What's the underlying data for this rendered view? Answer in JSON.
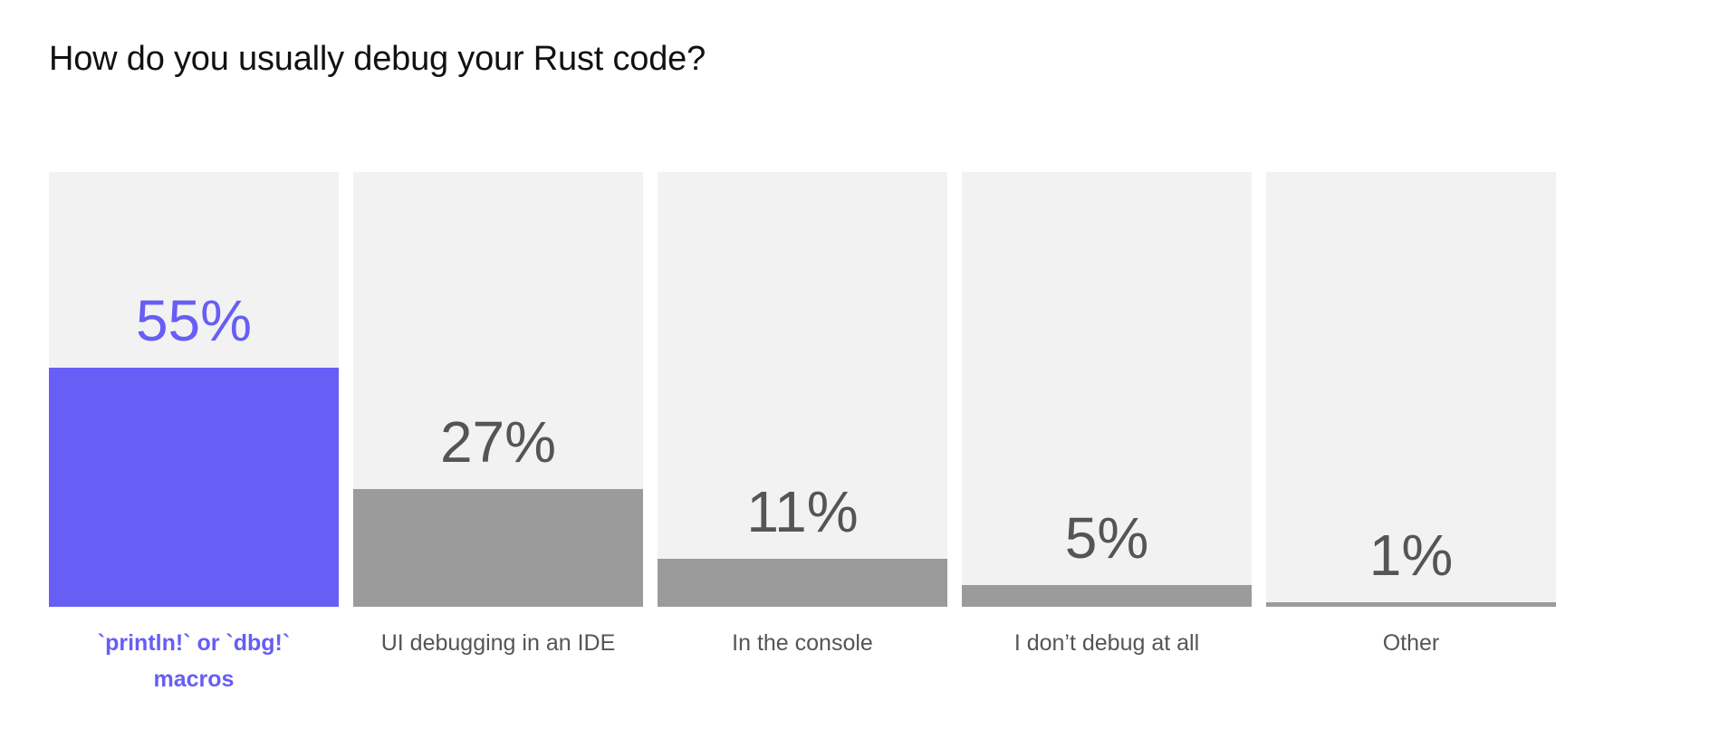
{
  "chart_data": {
    "type": "bar",
    "title": "How do you usually debug your Rust code?",
    "categories": [
      "`println!` or `dbg!` macros",
      "UI debugging in an IDE",
      "In the console",
      "I don’t debug at all",
      "Other"
    ],
    "values": [
      55,
      27,
      11,
      5,
      1
    ],
    "value_labels": [
      "55%",
      "27%",
      "11%",
      "5%",
      "1%"
    ],
    "unit": "%",
    "ylim": [
      0,
      100
    ],
    "highlight_index": 0,
    "grid": false,
    "legend": "none",
    "colors": {
      "highlight": "#665ef5",
      "bar": "#9b9b9b",
      "background": "#f2f2f2",
      "value_text": "#555555",
      "title_text": "#111111"
    }
  }
}
